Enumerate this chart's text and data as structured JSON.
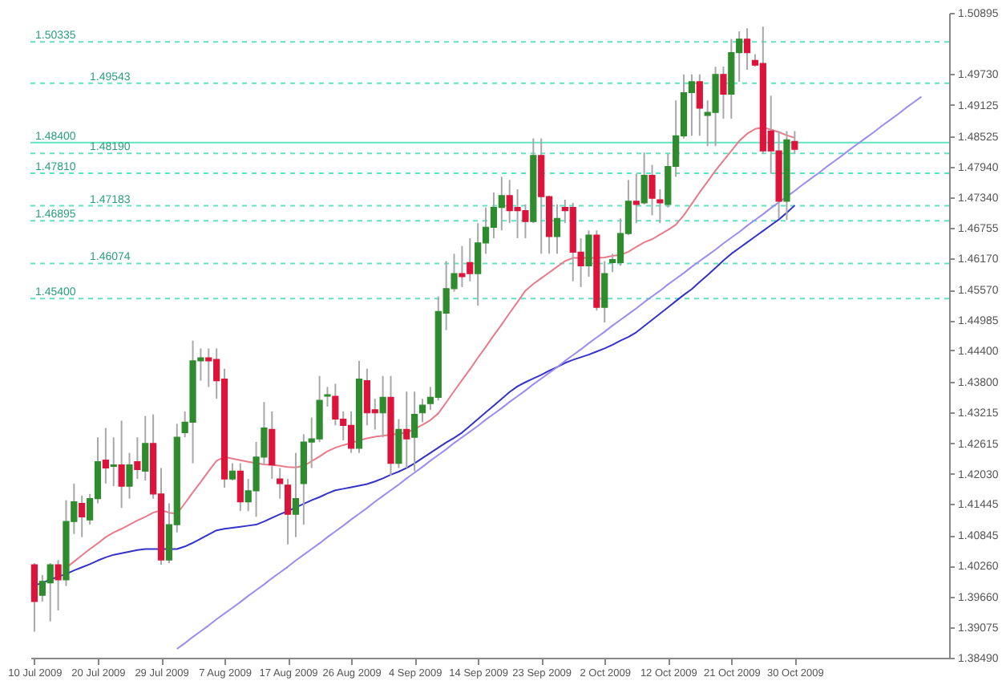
{
  "chart_data": {
    "type": "candlestick",
    "categories": [
      "10 Jul 2009",
      null,
      null,
      null,
      null,
      null,
      null,
      null,
      "20 Jul 2009",
      null,
      null,
      null,
      null,
      null,
      null,
      null,
      "29 Jul 2009",
      null,
      null,
      null,
      null,
      null,
      null,
      null,
      "7 Aug 2009",
      null,
      null,
      null,
      null,
      null,
      null,
      null,
      "17 Aug 2009",
      null,
      null,
      null,
      null,
      null,
      null,
      null,
      "26 Aug 2009",
      null,
      null,
      null,
      null,
      null,
      null,
      null,
      "4 Sep 2009",
      null,
      null,
      null,
      null,
      null,
      null,
      null,
      "14 Sep 2009",
      null,
      null,
      null,
      null,
      null,
      null,
      null,
      "23 Sep 2009",
      null,
      null,
      null,
      null,
      null,
      null,
      null,
      "2 Oct 2009",
      null,
      null,
      null,
      null,
      null,
      null,
      null,
      "12 Oct 2009",
      null,
      null,
      null,
      null,
      null,
      null,
      null,
      "21 Oct 2009",
      null,
      null,
      null,
      null,
      null,
      null,
      null,
      "30 Oct 2009",
      null,
      null,
      null,
      null,
      null,
      null,
      null,
      null,
      null,
      null,
      null,
      null,
      null,
      null,
      null,
      null,
      null,
      null,
      null
    ],
    "ohlc": [
      [
        1.4028,
        1.4031,
        1.3899,
        1.3957
      ],
      [
        1.3969,
        1.4008,
        1.3957,
        1.3996
      ],
      [
        1.3993,
        1.4031,
        1.3919,
        1.4028
      ],
      [
        1.4028,
        1.4037,
        1.394,
        1.3999
      ],
      [
        1.3999,
        1.4152,
        1.3987,
        1.4111
      ],
      [
        1.4111,
        1.4184,
        1.4087,
        1.4149
      ],
      [
        1.4146,
        1.4161,
        1.4081,
        1.412
      ],
      [
        1.4114,
        1.4164,
        1.4105,
        1.4155
      ],
      [
        1.4155,
        1.4273,
        1.4146,
        1.4226
      ],
      [
        1.4229,
        1.4291,
        1.4184,
        1.4214
      ],
      [
        1.4217,
        1.4273,
        1.4179,
        1.422
      ],
      [
        1.422,
        1.4305,
        1.4137,
        1.4179
      ],
      [
        1.4179,
        1.4243,
        1.4155,
        1.422
      ],
      [
        1.4226,
        1.4273,
        1.4193,
        1.4211
      ],
      [
        1.4208,
        1.4314,
        1.419,
        1.4261
      ],
      [
        1.4261,
        1.4317,
        1.4155,
        1.4164
      ],
      [
        1.4164,
        1.4214,
        1.4028,
        1.4037
      ],
      [
        1.4037,
        1.4146,
        1.4031,
        1.4105
      ],
      [
        1.4105,
        1.4299,
        1.409,
        1.4273
      ],
      [
        1.4282,
        1.4323,
        1.4273,
        1.4302
      ],
      [
        1.4302,
        1.4459,
        1.4223,
        1.442
      ],
      [
        1.442,
        1.4444,
        1.4382,
        1.4426
      ],
      [
        1.4426,
        1.4444,
        1.437,
        1.442
      ],
      [
        1.4423,
        1.4444,
        1.4347,
        1.4382
      ],
      [
        1.4385,
        1.4405,
        1.4176,
        1.4193
      ],
      [
        1.4193,
        1.4223,
        1.419,
        1.4208
      ],
      [
        1.4208,
        1.4223,
        1.4131,
        1.4149
      ],
      [
        1.4149,
        1.4193,
        1.4131,
        1.417
      ],
      [
        1.417,
        1.4264,
        1.412,
        1.4235
      ],
      [
        1.4235,
        1.4341,
        1.422,
        1.4291
      ],
      [
        1.4288,
        1.4323,
        1.4193,
        1.422
      ],
      [
        1.4193,
        1.4214,
        1.4155,
        1.4184
      ],
      [
        1.4181,
        1.4193,
        1.4067,
        1.4125
      ],
      [
        1.4125,
        1.4243,
        1.4081,
        1.4155
      ],
      [
        1.4184,
        1.4279,
        1.4105,
        1.4264
      ],
      [
        1.4264,
        1.4311,
        1.4214,
        1.427
      ],
      [
        1.427,
        1.4391,
        1.4264,
        1.4344
      ],
      [
        1.4352,
        1.437,
        1.4332,
        1.4355
      ],
      [
        1.4352,
        1.4376,
        1.4296,
        1.4308
      ],
      [
        1.4308,
        1.4323,
        1.4267,
        1.4296
      ],
      [
        1.4296,
        1.4323,
        1.4243,
        1.4252
      ],
      [
        1.4252,
        1.442,
        1.4243,
        1.4385
      ],
      [
        1.4382,
        1.4405,
        1.4296,
        1.432
      ],
      [
        1.4326,
        1.4347,
        1.4288,
        1.432
      ],
      [
        1.432,
        1.4391,
        1.4273,
        1.435
      ],
      [
        1.435,
        1.4391,
        1.4199,
        1.4223
      ],
      [
        1.4223,
        1.4308,
        1.4214,
        1.4288
      ],
      [
        1.4288,
        1.4361,
        1.4214,
        1.427
      ],
      [
        1.4273,
        1.4361,
        1.4208,
        1.4317
      ],
      [
        1.432,
        1.4347,
        1.4302,
        1.4335
      ],
      [
        1.4338,
        1.437,
        1.4326,
        1.435
      ],
      [
        1.435,
        1.4544,
        1.4344,
        1.4515
      ],
      [
        1.4512,
        1.4612,
        1.4479,
        1.4559
      ],
      [
        1.4559,
        1.4626,
        1.4553,
        1.4588
      ],
      [
        1.4588,
        1.4641,
        1.4562,
        1.4582
      ],
      [
        1.4609,
        1.4656,
        1.4573,
        1.4588
      ],
      [
        1.4588,
        1.4685,
        1.4526,
        1.4647
      ],
      [
        1.4647,
        1.4715,
        1.4626,
        1.4677
      ],
      [
        1.4677,
        1.4744,
        1.4656,
        1.4715
      ],
      [
        1.4715,
        1.4774,
        1.4671,
        1.4738
      ],
      [
        1.4738,
        1.4768,
        1.4685,
        1.4709
      ],
      [
        1.4715,
        1.475,
        1.4656,
        1.4709
      ],
      [
        1.4709,
        1.4721,
        1.4656,
        1.4688
      ],
      [
        1.4688,
        1.4848,
        1.4685,
        1.4815
      ],
      [
        1.4815,
        1.4848,
        1.4626,
        1.4736
      ],
      [
        1.4736,
        1.4738,
        1.4626,
        1.4659
      ],
      [
        1.4659,
        1.4721,
        1.4626,
        1.4694
      ],
      [
        1.4715,
        1.473,
        1.4685,
        1.4709
      ],
      [
        1.4715,
        1.4724,
        1.4573,
        1.4629
      ],
      [
        1.4629,
        1.4656,
        1.4562,
        1.4603
      ],
      [
        1.4603,
        1.4671,
        1.4582,
        1.4662
      ],
      [
        1.4662,
        1.4671,
        1.4517,
        1.4523
      ],
      [
        1.4523,
        1.4612,
        1.4494,
        1.4588
      ],
      [
        1.4609,
        1.4626,
        1.4591,
        1.4615
      ],
      [
        1.4609,
        1.4694,
        1.4603,
        1.4665
      ],
      [
        1.4665,
        1.4768,
        1.4662,
        1.4727
      ],
      [
        1.4727,
        1.478,
        1.4685,
        1.4721
      ],
      [
        1.4724,
        1.4821,
        1.4721,
        1.4777
      ],
      [
        1.4777,
        1.4797,
        1.47,
        1.4733
      ],
      [
        1.473,
        1.475,
        1.4685,
        1.4724
      ],
      [
        1.4721,
        1.4818,
        1.4715,
        1.4794
      ],
      [
        1.4794,
        1.4921,
        1.4774,
        1.4853
      ],
      [
        1.4853,
        1.4971,
        1.4848,
        1.4936
      ],
      [
        1.4936,
        1.4971,
        1.4853,
        1.4957
      ],
      [
        1.4957,
        1.4971,
        1.4853,
        1.4906
      ],
      [
        1.4892,
        1.4921,
        1.4833,
        1.4898
      ],
      [
        1.4898,
        1.4986,
        1.4833,
        1.4971
      ],
      [
        1.4971,
        1.4986,
        1.4886,
        1.4933
      ],
      [
        1.4933,
        1.5039,
        1.4886,
        1.5013
      ],
      [
        1.5013,
        1.5054,
        1.4957,
        1.5039
      ],
      [
        1.5039,
        1.506,
        1.498,
        1.5013
      ],
      [
        1.4998,
        1.501,
        1.4986,
        1.4989
      ],
      [
        1.4992,
        1.5063,
        1.4818,
        1.4824
      ],
      [
        1.4862,
        1.493,
        1.478,
        1.4824
      ],
      [
        1.4824,
        1.4862,
        1.4694,
        1.4727
      ],
      [
        1.4727,
        1.4862,
        1.4691,
        1.4845
      ],
      [
        1.4842,
        1.4862,
        1.4818,
        1.4827
      ],
      null,
      null,
      null,
      null,
      null,
      null,
      null,
      null,
      null,
      null,
      null,
      null,
      null,
      null,
      null,
      null,
      null,
      null,
      null
    ],
    "colors": [
      "#dc143c",
      "#2e8b2e",
      "#2e8b2e",
      "#dc143c",
      "#2e8b2e",
      "#2e8b2e",
      "#dc143c",
      "#2e8b2e",
      "#2e8b2e",
      "#dc143c",
      "#2e8b2e",
      "#dc143c",
      "#2e8b2e",
      "#dc143c",
      "#2e8b2e",
      "#dc143c",
      "#dc143c",
      "#2e8b2e",
      "#2e8b2e",
      "#2e8b2e",
      "#2e8b2e",
      "#2e8b2e",
      "#dc143c",
      "#dc143c",
      "#dc143c",
      "#2e8b2e",
      "#dc143c",
      "#2e8b2e",
      "#2e8b2e",
      "#2e8b2e",
      "#dc143c",
      "#dc143c",
      "#dc143c",
      "#2e8b2e",
      "#2e8b2e",
      "#2e8b2e",
      "#2e8b2e",
      "#2e8b2e",
      "#dc143c",
      "#dc143c",
      "#dc143c",
      "#2e8b2e",
      "#dc143c",
      "#dc143c",
      "#2e8b2e",
      "#dc143c",
      "#2e8b2e",
      "#dc143c",
      "#2e8b2e",
      "#2e8b2e",
      "#2e8b2e",
      "#2e8b2e",
      "#2e8b2e",
      "#2e8b2e",
      "#dc143c",
      "#dc143c",
      "#2e8b2e",
      "#2e8b2e",
      "#2e8b2e",
      "#2e8b2e",
      "#dc143c",
      "#dc143c",
      "#dc143c",
      "#2e8b2e",
      "#dc143c",
      "#dc143c",
      "#2e8b2e",
      "#dc143c",
      "#dc143c",
      "#dc143c",
      "#2e8b2e",
      "#dc143c",
      "#2e8b2e",
      "#2e8b2e",
      "#2e8b2e",
      "#2e8b2e",
      "#dc143c",
      "#2e8b2e",
      "#dc143c",
      "#dc143c",
      "#2e8b2e",
      "#2e8b2e",
      "#2e8b2e",
      "#2e8b2e",
      "#dc143c",
      "#2e8b2e",
      "#2e8b2e",
      "#dc143c",
      "#2e8b2e",
      "#2e8b2e",
      "#dc143c",
      "#dc143c",
      "#dc143c",
      "#dc143c",
      "#dc143c",
      "#2e8b2e",
      "#dc143c",
      null,
      null,
      null,
      null,
      null,
      null,
      null,
      null,
      null,
      null,
      null,
      null,
      null,
      null,
      null,
      null,
      null,
      null,
      null
    ],
    "series": [
      {
        "type": "line",
        "color": "#e87a8a",
        "values": [
          null,
          null,
          null,
          null,
          1.4022,
          1.4034,
          1.4046,
          1.4058,
          1.4069,
          1.4081,
          1.409,
          1.4097,
          1.4105,
          1.4113,
          1.412,
          1.4128,
          1.4133,
          1.4128,
          1.4126,
          1.4146,
          1.4167,
          1.4187,
          1.4208,
          1.4228,
          1.4235,
          1.4232,
          1.4229,
          1.4226,
          1.4223,
          1.4221,
          1.422,
          1.4218,
          1.4216,
          1.4215,
          1.4218,
          1.4227,
          1.4236,
          1.4246,
          1.4253,
          1.4258,
          1.4262,
          1.4267,
          1.4271,
          1.4274,
          1.4276,
          1.4278,
          1.428,
          1.4282,
          1.4289,
          1.4297,
          1.4306,
          1.4319,
          1.434,
          1.4362,
          1.4383,
          1.4404,
          1.4426,
          1.4447,
          1.4469,
          1.449,
          1.4512,
          1.4533,
          1.4555,
          1.4568,
          1.4579,
          1.459,
          1.4601,
          1.4612,
          1.4618,
          1.4618,
          1.4618,
          1.4618,
          1.4619,
          1.4622,
          1.4624,
          1.463,
          1.4639,
          1.4648,
          1.4654,
          1.4663,
          1.4672,
          1.4682,
          1.47,
          1.4722,
          1.4744,
          1.4765,
          1.4786,
          1.4805,
          1.4824,
          1.4843,
          1.4857,
          1.4866,
          1.4869,
          1.4865,
          1.486,
          1.4854,
          1.4849,
          null,
          null,
          null,
          null,
          null,
          null,
          null,
          null,
          null,
          null,
          null,
          null,
          null,
          null,
          null,
          null,
          null,
          null,
          null
        ]
      },
      {
        "type": "line",
        "color": "#3333cc",
        "values": [
          1.3988,
          1.3993,
          1.3999,
          1.4005,
          1.401,
          1.4017,
          1.4023,
          1.4029,
          1.4036,
          1.4042,
          1.4047,
          1.405,
          1.4053,
          1.4056,
          1.4058,
          1.4058,
          1.4058,
          1.4058,
          1.4058,
          1.4063,
          1.407,
          1.4078,
          1.4086,
          1.4094,
          1.4097,
          1.4099,
          1.4101,
          1.4103,
          1.4105,
          1.4111,
          1.4118,
          1.4125,
          1.4131,
          1.4138,
          1.4145,
          1.4152,
          1.4158,
          1.4165,
          1.4171,
          1.4174,
          1.4177,
          1.418,
          1.4183,
          1.4188,
          1.4194,
          1.4201,
          1.4207,
          1.4214,
          1.4223,
          1.4233,
          1.4243,
          1.4253,
          1.4263,
          1.4272,
          1.4282,
          1.4295,
          1.4308,
          1.4321,
          1.4334,
          1.4347,
          1.436,
          1.4371,
          1.4379,
          1.4386,
          1.4393,
          1.4401,
          1.4408,
          1.4416,
          1.4422,
          1.4427,
          1.4432,
          1.4438,
          1.4444,
          1.4451,
          1.4459,
          1.4466,
          1.4475,
          1.4487,
          1.4499,
          1.4511,
          1.4523,
          1.4535,
          1.4547,
          1.4558,
          1.4572,
          1.4585,
          1.4599,
          1.4613,
          1.4626,
          1.4637,
          1.4648,
          1.4659,
          1.467,
          1.4681,
          1.4692,
          1.4705,
          1.4719,
          null,
          null,
          null,
          null,
          null,
          null,
          null,
          null,
          null,
          null,
          null,
          null,
          null,
          null,
          null,
          null,
          null,
          null,
          null
        ]
      },
      {
        "type": "line",
        "color": "#9a8cf0",
        "values": [
          null,
          null,
          null,
          null,
          null,
          null,
          null,
          null,
          null,
          null,
          null,
          null,
          null,
          null,
          null,
          null,
          null,
          null,
          1.3866,
          1.3877,
          1.3889,
          1.39,
          1.3911,
          1.3923,
          1.3934,
          1.3945,
          1.3956,
          1.3968,
          1.3979,
          1.399,
          1.4002,
          1.4013,
          1.4024,
          1.4036,
          1.4047,
          1.4058,
          1.4069,
          1.4081,
          1.4092,
          1.4103,
          1.4115,
          1.4126,
          1.4137,
          1.4149,
          1.416,
          1.4171,
          1.4182,
          1.4194,
          1.4205,
          1.4216,
          1.4228,
          1.4239,
          1.425,
          1.4262,
          1.4273,
          1.4284,
          1.4295,
          1.4307,
          1.4318,
          1.4329,
          1.4341,
          1.4352,
          1.4363,
          1.4375,
          1.4386,
          1.4397,
          1.4408,
          1.442,
          1.4431,
          1.4442,
          1.4454,
          1.4465,
          1.4476,
          1.4488,
          1.4499,
          1.451,
          1.4521,
          1.4533,
          1.4544,
          1.4555,
          1.4567,
          1.4578,
          1.4589,
          1.4601,
          1.4612,
          1.4623,
          1.4634,
          1.4646,
          1.4657,
          1.4668,
          1.468,
          1.4691,
          1.4702,
          1.4714,
          1.4725,
          1.4736,
          1.4747,
          1.4759,
          1.477,
          1.4781,
          1.4793,
          1.4804,
          1.4815,
          1.4827,
          1.4838,
          1.4849,
          1.486,
          1.4872,
          1.4883,
          1.4894,
          1.4906,
          1.4917,
          1.4928,
          null,
          null,
          null
        ]
      }
    ],
    "ylim": [
      1.3849,
      1.50895
    ],
    "yticks": [
      1.50895,
      {
        "value": 1.4973,
        "label": "1.49730"
      },
      1.49125,
      1.48525,
      {
        "value": 1.4794,
        "label": "1.47940"
      },
      {
        "value": 1.4734,
        "label": "1.47340"
      },
      1.46755,
      {
        "value": 1.4617,
        "label": "1.46170"
      },
      {
        "value": 1.4557,
        "label": "1.45570"
      },
      1.44985,
      {
        "value": 1.444,
        "label": "1.44400"
      },
      {
        "value": 1.438,
        "label": "1.43800"
      },
      1.43215,
      1.42615,
      {
        "value": 1.4203,
        "label": "1.42030"
      },
      1.41445,
      1.40845,
      {
        "value": 1.4026,
        "label": "1.40260"
      },
      {
        "value": 1.3966,
        "label": "1.39660"
      },
      1.39075,
      {
        "value": 1.3849,
        "label": "1.38490"
      }
    ],
    "ref_lines": [
      {
        "axis": "y",
        "value": 1.50335,
        "label": "1.50335",
        "color": "#5fe3c0",
        "line_style": "dashed"
      },
      {
        "axis": "y",
        "value": 1.49543,
        "label": "1.49543",
        "color": "#5fe3c0",
        "line_style": "dashed"
      },
      {
        "axis": "y",
        "value": 1.484,
        "label": "1.48400",
        "color": "#5fe3c0",
        "line_style": "solid"
      },
      {
        "axis": "y",
        "value": 1.4819,
        "label": "1.48190",
        "color": "#5fe3c0",
        "line_style": "dashed"
      },
      {
        "axis": "y",
        "value": 1.4781,
        "label": "1.47810",
        "color": "#5fe3c0",
        "line_style": "dashed"
      },
      {
        "axis": "y",
        "value": 1.47183,
        "label": "1.47183",
        "color": "#5fe3c0",
        "line_style": "dashed"
      },
      {
        "axis": "y",
        "value": 1.46895,
        "label": "1.46895",
        "color": "#5fe3c0",
        "line_style": "dashed"
      },
      {
        "axis": "y",
        "value": 1.46074,
        "label": "1.46074",
        "color": "#5fe3c0",
        "line_style": "dashed"
      },
      {
        "axis": "y",
        "value": 1.454,
        "label": "1.45400",
        "color": "#5fe3c0",
        "line_style": "dashed"
      }
    ]
  }
}
